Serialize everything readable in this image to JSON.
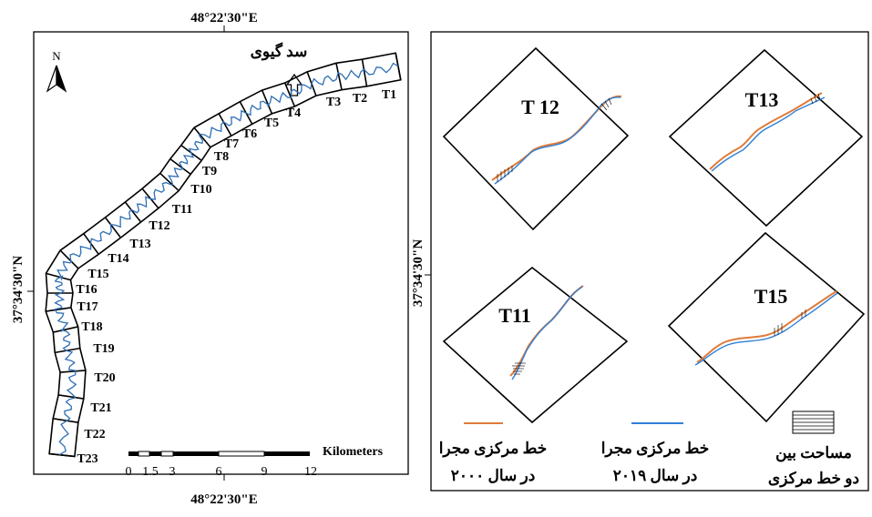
{
  "left_map": {
    "coord_top": "48°22'30\"E",
    "coord_bottom": "48°22'30\"E",
    "coord_left": "37°34'30\"N",
    "north_letter": "N",
    "dam_label": "سد گیوی",
    "segments": [
      "T1",
      "T2",
      "T3",
      "T4",
      "T5",
      "T6",
      "T7",
      "T8",
      "T9",
      "T10",
      "T11",
      "T12",
      "T13",
      "T14",
      "T15",
      "T16",
      "T17",
      "T18",
      "T19",
      "T20",
      "T21",
      "T22",
      "T23"
    ],
    "scale": {
      "unit": "Kilometers",
      "ticks": [
        "0",
        "1.5",
        "3",
        "6",
        "9",
        "12"
      ]
    }
  },
  "right_panel": {
    "coord_right": "37°34'30\"N",
    "insets": [
      {
        "id": "t12",
        "label": "T 12"
      },
      {
        "id": "t13",
        "label": "T13"
      },
      {
        "id": "t11",
        "label": "T11"
      },
      {
        "id": "t15",
        "label": "T15"
      }
    ],
    "legend": [
      {
        "line1": "خط مرکزی مجرا",
        "line2": "در سال ۲۰۰۰",
        "color": "#e07b39"
      },
      {
        "line1": "خط مرکزی مجرا",
        "line2": "در سال ۲۰۱۹",
        "color": "#2f7fd6"
      },
      {
        "line1": "مساحت بین",
        "line2": "دو خط مرکزی"
      }
    ]
  }
}
